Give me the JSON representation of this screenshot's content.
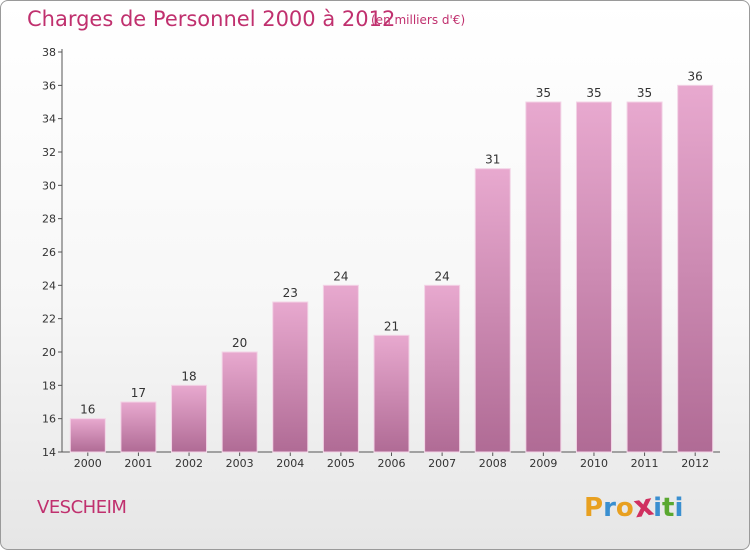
{
  "header": {
    "title": "Charges de Personnel 2000 à 2012",
    "subtitle": "(en milliers d'€)"
  },
  "footer": {
    "commune": "VESCHEIM",
    "brand": "Proxiti",
    "brand_letters": [
      "P",
      "r",
      "o",
      "x",
      "i",
      "t",
      "i"
    ],
    "brand_colors": [
      "#e8a020",
      "#3a8fd0",
      "#e8a020",
      "#d03060",
      "#3a8fd0",
      "#5aa830",
      "#3a8fd0"
    ]
  },
  "colors": {
    "accent": "#c0306e",
    "bar_top": "#e8a9cf",
    "bar_bottom": "#b06b95"
  },
  "chart_data": {
    "type": "bar",
    "title": "Charges de Personnel 2000 à 2012",
    "subtitle": "(en milliers d'€)",
    "xlabel": "",
    "ylabel": "",
    "categories": [
      "2000",
      "2001",
      "2002",
      "2003",
      "2004",
      "2005",
      "2006",
      "2007",
      "2008",
      "2009",
      "2010",
      "2011",
      "2012"
    ],
    "values": [
      16,
      17,
      18,
      20,
      23,
      24,
      21,
      24,
      31,
      35,
      35,
      35,
      36
    ],
    "ylim": [
      14,
      38
    ],
    "yticks": [
      14,
      16,
      18,
      20,
      22,
      24,
      26,
      28,
      30,
      32,
      34,
      36,
      38
    ],
    "grid": false,
    "legend": "none"
  }
}
